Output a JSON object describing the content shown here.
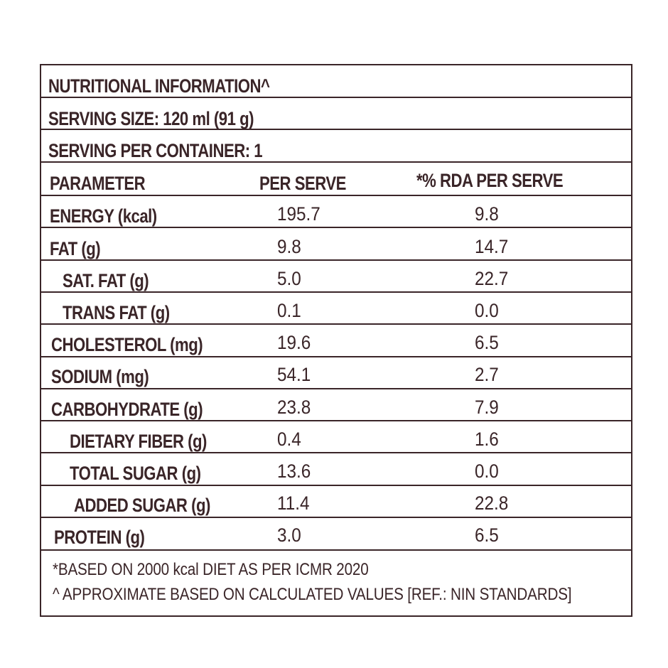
{
  "title": "NUTRITIONAL INFORMATION^",
  "serving_size": "SERVING SIZE: 120 ml (91 g)",
  "servings_per_container": "SERVING PER CONTAINER: 1",
  "headers": {
    "parameter": "PARAMETER",
    "per_serve": "PER SERVE",
    "rda": "*% RDA PER SERVE"
  },
  "rows": [
    {
      "param": "ENERGY (kcal)",
      "per_serve": "195.7",
      "rda": "9.8"
    },
    {
      "param": "FAT (g)",
      "per_serve": "9.8",
      "rda": "14.7"
    },
    {
      "param": "SAT. FAT (g)",
      "per_serve": "5.0",
      "rda": "22.7"
    },
    {
      "param": "TRANS FAT (g)",
      "per_serve": "0.1",
      "rda": "0.0"
    },
    {
      "param": "CHOLESTEROL (mg)",
      "per_serve": "19.6",
      "rda": "6.5"
    },
    {
      "param": "SODIUM (mg)",
      "per_serve": "54.1",
      "rda": "2.7"
    },
    {
      "param": "CARBOHYDRATE (g)",
      "per_serve": "23.8",
      "rda": "7.9"
    },
    {
      "param": "DIETARY FIBER (g)",
      "per_serve": "0.4",
      "rda": "1.6"
    },
    {
      "param": "TOTAL SUGAR (g)",
      "per_serve": "13.6",
      "rda": "0.0"
    },
    {
      "param": "ADDED SUGAR (g)",
      "per_serve": "11.4",
      "rda": "22.8"
    },
    {
      "param": "PROTEIN (g)",
      "per_serve": "3.0",
      "rda": "6.5"
    }
  ],
  "footnotes": [
    "*BASED ON 2000 kcal DIET AS PER ICMR 2020",
    "^ APPROXIMATE BASED ON CALCULATED VALUES [REF.: NIN STANDARDS]"
  ],
  "colors": {
    "ink": "#3a2528",
    "background": "#ffffff"
  }
}
